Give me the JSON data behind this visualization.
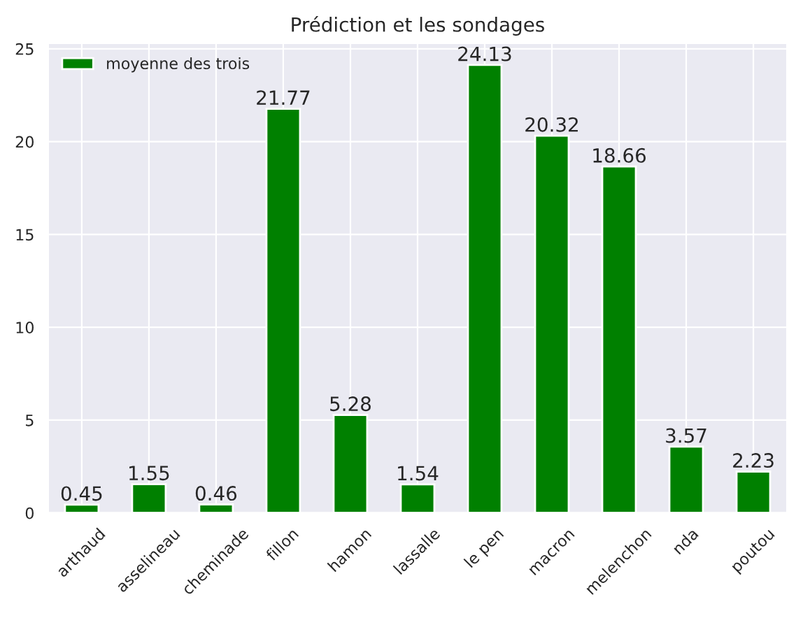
{
  "chart_data": {
    "type": "bar",
    "title": "Prédiction et les sondages",
    "categories": [
      "arthaud",
      "asselineau",
      "cheminade",
      "fillon",
      "hamon",
      "lassalle",
      "le pen",
      "macron",
      "melenchon",
      "nda",
      "poutou"
    ],
    "series": [
      {
        "name": "moyenne des trois",
        "color": "#008000",
        "values": [
          0.45,
          1.55,
          0.46,
          21.77,
          5.28,
          1.54,
          24.13,
          20.32,
          18.66,
          3.57,
          2.23
        ]
      }
    ],
    "data_labels": true,
    "ylim": [
      0,
      25.3
    ],
    "yticks": [
      0,
      5,
      10,
      15,
      20,
      25
    ],
    "grid": true,
    "legend": "top left"
  }
}
